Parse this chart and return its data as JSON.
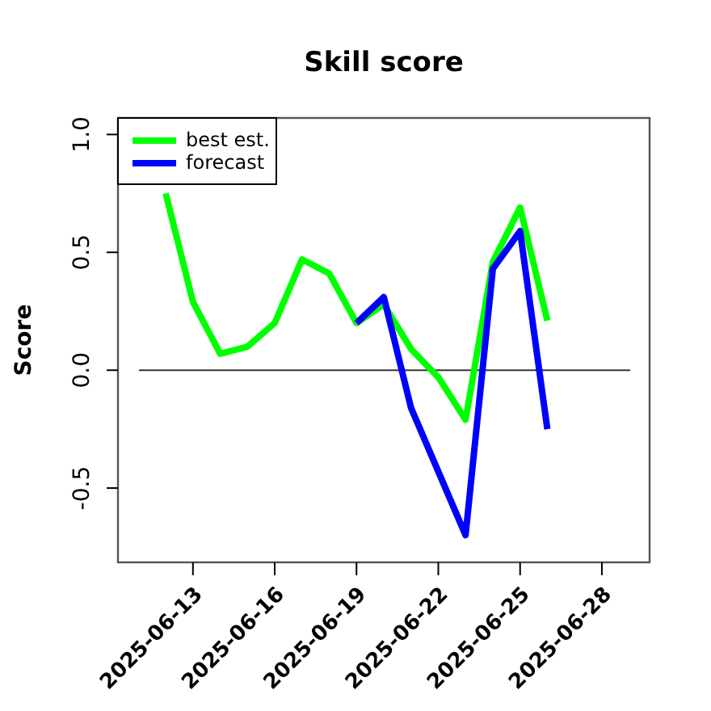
{
  "chart_data": {
    "type": "line",
    "title": "Skill score",
    "ylabel": "Score",
    "x": [
      "2025-06-12",
      "2025-06-13",
      "2025-06-14",
      "2025-06-15",
      "2025-06-16",
      "2025-06-17",
      "2025-06-18",
      "2025-06-19",
      "2025-06-20",
      "2025-06-21",
      "2025-06-22",
      "2025-06-23",
      "2025-06-24",
      "2025-06-25",
      "2025-06-26"
    ],
    "series": [
      {
        "name": "best est.",
        "color": "#00ff00",
        "values": [
          0.75,
          0.29,
          0.07,
          0.1,
          0.2,
          0.47,
          0.41,
          0.2,
          0.28,
          0.09,
          -0.03,
          -0.21,
          0.46,
          0.69,
          0.21
        ]
      },
      {
        "name": "forecast",
        "color": "#0000ff",
        "values": [
          null,
          null,
          null,
          null,
          null,
          null,
          null,
          0.2,
          0.31,
          -0.16,
          -0.43,
          -0.7,
          0.43,
          0.59,
          -0.25
        ]
      }
    ],
    "xlim": [
      "2025-06-10T06:00",
      "2025-06-29T18:00"
    ],
    "xticks": [
      {
        "value": "2025-06-13",
        "label": "2025-06-13"
      },
      {
        "value": "2025-06-16",
        "label": "2025-06-16"
      },
      {
        "value": "2025-06-19",
        "label": "2025-06-19"
      },
      {
        "value": "2025-06-22",
        "label": "2025-06-22"
      },
      {
        "value": "2025-06-25",
        "label": "2025-06-25"
      },
      {
        "value": "2025-06-28",
        "label": "2025-06-28"
      }
    ],
    "ylim": [
      -0.815,
      1.07
    ],
    "yticks": [
      {
        "value": -0.5,
        "label": "-0.5"
      },
      {
        "value": 0,
        "label": "0.0"
      },
      {
        "value": 0.5,
        "label": "0.5"
      },
      {
        "value": 1,
        "label": "1.0"
      }
    ],
    "ref_lines": [
      {
        "axis": "y",
        "value": 0,
        "color": "#333333"
      }
    ],
    "legend": "top left",
    "grid": false,
    "line_style": "solid",
    "marker": "none"
  }
}
